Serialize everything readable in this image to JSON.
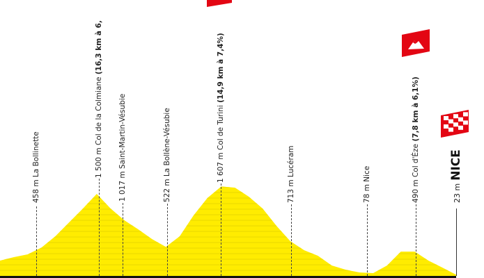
{
  "chart_data": {
    "type": "area",
    "title": "",
    "xlabel": "",
    "ylabel": "",
    "ylim": [
      0,
      4900
    ],
    "grid": false,
    "fill_color": "#ffec00",
    "baseline_color": "#111111",
    "elevation_m": [
      275,
      338,
      388,
      510,
      712,
      962,
      1212,
      1475,
      1212,
      1000,
      837,
      662,
      522,
      712,
      1087,
      1400,
      1607,
      1587,
      1425,
      1212,
      900,
      625,
      462,
      362,
      187,
      112,
      62,
      50,
      187,
      437,
      437,
      275,
      150,
      23
    ],
    "markers": [
      {
        "altitude": "458 m",
        "name": "La Bollinette",
        "climb": ""
      },
      {
        "altitude": "1 500 m",
        "name": "Col de la Colmiane",
        "climb": "(16,3 km à 6,"
      },
      {
        "altitude": "1 017 m",
        "name": "Saint-Martin-Vésubie",
        "climb": ""
      },
      {
        "altitude": "522 m",
        "name": "La Bollène-Vésubie",
        "climb": ""
      },
      {
        "altitude": "1 607 m",
        "name": "Col de Turini",
        "climb": "(14,9 km à 7,4%)"
      },
      {
        "altitude": "713 m",
        "name": "Lucéram",
        "climb": ""
      },
      {
        "altitude": "78 m",
        "name": "Nice",
        "climb": ""
      },
      {
        "altitude": "490 m",
        "name": "Col d'Èze",
        "climb": "(7,8 km à 6,1%)"
      }
    ],
    "finish": {
      "altitude": "23 m",
      "name": "NICE"
    }
  },
  "colors": {
    "climb_flag": "#e30613",
    "checkered": "#e30613"
  },
  "icons": {
    "climb": "mountain-flag-icon",
    "finish": "checkered-flag-icon"
  }
}
